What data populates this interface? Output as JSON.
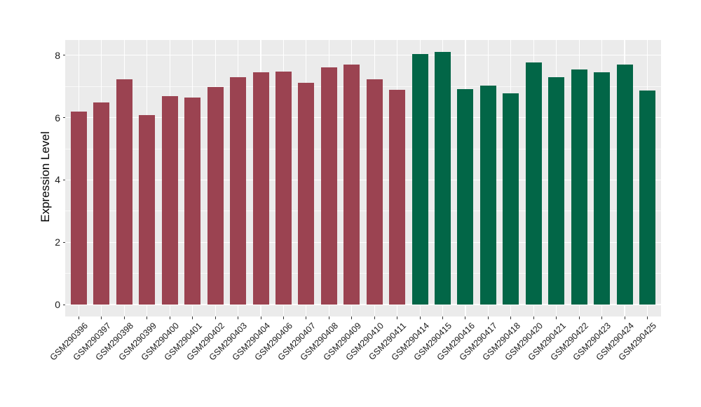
{
  "chart_data": {
    "type": "bar",
    "title": "",
    "xlabel": "",
    "ylabel": "Expression Level",
    "ylim": [
      0,
      8.49
    ],
    "yticks_major": [
      0,
      2,
      4,
      6,
      8
    ],
    "yticks_minor": [
      1,
      3,
      5,
      7
    ],
    "grid": "horizontal major+minor, vertical major at category centers, white on grey panel",
    "legend": "none",
    "categories": [
      "GSM290396",
      "GSM290397",
      "GSM290398",
      "GSM290399",
      "GSM290400",
      "GSM290401",
      "GSM290402",
      "GSM290403",
      "GSM290404",
      "GSM290406",
      "GSM290407",
      "GSM290408",
      "GSM290409",
      "GSM290410",
      "GSM290411",
      "GSM290414",
      "GSM290415",
      "GSM290416",
      "GSM290417",
      "GSM290418",
      "GSM290420",
      "GSM290421",
      "GSM290422",
      "GSM290423",
      "GSM290424",
      "GSM290425"
    ],
    "values": [
      6.19,
      6.48,
      7.24,
      6.09,
      6.69,
      6.65,
      6.99,
      7.29,
      7.46,
      7.47,
      7.11,
      7.61,
      7.7,
      7.22,
      6.9,
      8.05,
      8.1,
      6.91,
      7.03,
      6.78,
      7.77,
      7.29,
      7.55,
      7.46,
      7.7,
      6.88
    ],
    "bar_groups": [
      "maroon",
      "maroon",
      "maroon",
      "maroon",
      "maroon",
      "maroon",
      "maroon",
      "maroon",
      "maroon",
      "maroon",
      "maroon",
      "maroon",
      "maroon",
      "maroon",
      "maroon",
      "green",
      "green",
      "green",
      "green",
      "green",
      "green",
      "green",
      "green",
      "green",
      "green",
      "green"
    ],
    "group_colors": {
      "maroon": "#9B4351",
      "green": "#026647"
    }
  },
  "style": {
    "background": "#FFFFFF",
    "panel_bg": "#EBEBEB",
    "grid_major_color": "#FFFFFF",
    "grid_minor_color": "rgba(255,255,255,0.7)",
    "axis_text_color": "#1A1A1A",
    "tick_mark_color": "#333333",
    "y_title_color": "#000000"
  }
}
